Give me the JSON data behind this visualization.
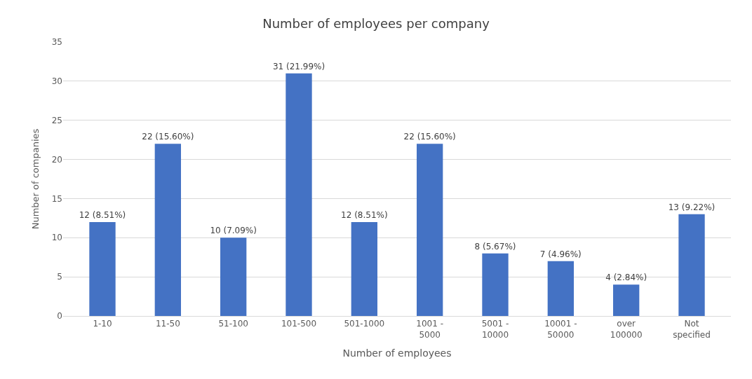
{
  "chart_data": {
    "type": "bar",
    "title": "Number of employees per company",
    "xlabel": "Number of employees",
    "ylabel": "Number of companies",
    "categories": [
      "1-10",
      "11-50",
      "51-100",
      "101-500",
      "501-1000",
      "1001 - 5000",
      "5001 - 10000",
      "10001 - 50000",
      "over 100000",
      "Not specified"
    ],
    "values": [
      12,
      22,
      10,
      31,
      12,
      22,
      8,
      7,
      4,
      13
    ],
    "value_labels": [
      "12 (8.51%)",
      "22 (15.60%)",
      "10 (7.09%)",
      "31 (21.99%)",
      "12 (8.51%)",
      "22 (15.60%)",
      "8 (5.67%)",
      "7 (4.96%)",
      "4 (2.84%)",
      "13 (9.22%)"
    ],
    "color": "#4472c4",
    "ylim": [
      0,
      35
    ],
    "yticks": [
      0,
      5,
      10,
      15,
      20,
      25,
      30,
      35
    ],
    "grid": "y",
    "legend": false
  }
}
